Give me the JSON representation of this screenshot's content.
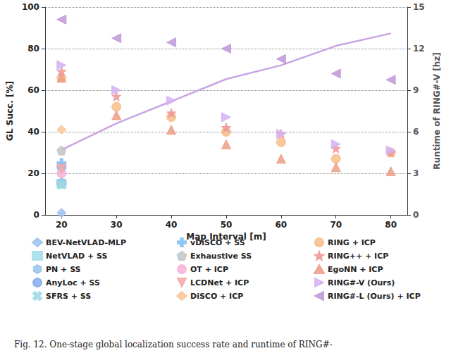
{
  "chart_data": {
    "type": "scatter",
    "caption": "Fig. 12. One-stage global localization success rate and runtime of RING#-",
    "xlabel": "Map Interval [m]",
    "ylabel": "GL Succ. [%]",
    "y2label": "Runtime of RING#-V [hz]",
    "x": [
      20,
      30,
      40,
      50,
      60,
      70,
      80
    ],
    "xlim": [
      17,
      83
    ],
    "xticks": [
      20,
      30,
      40,
      50,
      60,
      70,
      80
    ],
    "ylim": [
      0,
      100
    ],
    "yticks": [
      0,
      20,
      40,
      60,
      80,
      100
    ],
    "y2lim": [
      0,
      15
    ],
    "y2ticks": [
      0,
      3,
      6,
      9,
      12,
      15
    ],
    "grid": true,
    "legend": "bottom",
    "series": [
      {
        "name": "BEV-NetVLAD-MLP",
        "color": "#9dbff0",
        "marker": "diamond",
        "values": [
          1,
          null,
          null,
          null,
          null,
          null,
          null
        ]
      },
      {
        "name": "NetVLAD + SS",
        "color": "#a3dde8",
        "marker": "square",
        "values": [
          15,
          null,
          null,
          null,
          null,
          null,
          null
        ]
      },
      {
        "name": "PN + SS",
        "color": "#93c4e6",
        "marker": "hexagon",
        "values": [
          15.5,
          null,
          null,
          null,
          null,
          null,
          null
        ]
      },
      {
        "name": "AnyLoc + SS",
        "color": "#85aee8",
        "marker": "circle",
        "values": [
          23,
          null,
          null,
          null,
          null,
          null,
          null
        ]
      },
      {
        "name": "SFRS + SS",
        "color": "#9edbe3",
        "marker": "x",
        "values": [
          14.5,
          null,
          null,
          null,
          null,
          null,
          null
        ]
      },
      {
        "name": "vDiSCO + SS",
        "color": "#86c0ee",
        "marker": "plus",
        "values": [
          25,
          null,
          null,
          null,
          null,
          null,
          null
        ]
      },
      {
        "name": "Exhaustive SS",
        "color": "#c4c4c4",
        "marker": "pentagon",
        "values": [
          31,
          null,
          null,
          null,
          null,
          null,
          null
        ]
      },
      {
        "name": "OT + ICP",
        "color": "#f5b3d6",
        "marker": "circle",
        "values": [
          20,
          null,
          null,
          null,
          null,
          null,
          null
        ]
      },
      {
        "name": "LCDNet + ICP",
        "color": "#f2aaaa",
        "marker": "triangle-down",
        "values": [
          22,
          null,
          null,
          null,
          null,
          null,
          null
        ]
      },
      {
        "name": "DiSCO + ICP",
        "color": "#f7c796",
        "marker": "diamond",
        "values": [
          41,
          null,
          null,
          null,
          null,
          null,
          null
        ]
      },
      {
        "name": "RING + ICP",
        "color": "#f6bd8c",
        "marker": "circle",
        "values": [
          66,
          52,
          47,
          40,
          35,
          27,
          30
        ]
      },
      {
        "name": "RING++ + ICP",
        "color": "#ef9696",
        "marker": "star",
        "values": [
          69,
          57,
          49,
          42,
          39,
          32,
          30
        ]
      },
      {
        "name": "EgoNN + ICP",
        "color": "#ec9d86",
        "marker": "triangle",
        "values": [
          66,
          48,
          41,
          34,
          27,
          23,
          21
        ]
      },
      {
        "name": "RING#-V (Ours)",
        "color": "#d3b1f2",
        "marker": "triangle-right",
        "values": [
          72,
          60,
          55,
          47,
          39,
          34,
          31
        ]
      },
      {
        "name": "RING#-L (Ours) + ICP",
        "color": "#c097d8",
        "marker": "triangle-left",
        "values": [
          94,
          85,
          83,
          80,
          75,
          68,
          65
        ]
      },
      {
        "type": "line",
        "axis": "y2",
        "color": "#c8a5e6",
        "values": [
          4.7,
          6.6,
          8.2,
          9.8,
          10.8,
          12.2,
          13.1
        ]
      }
    ]
  }
}
